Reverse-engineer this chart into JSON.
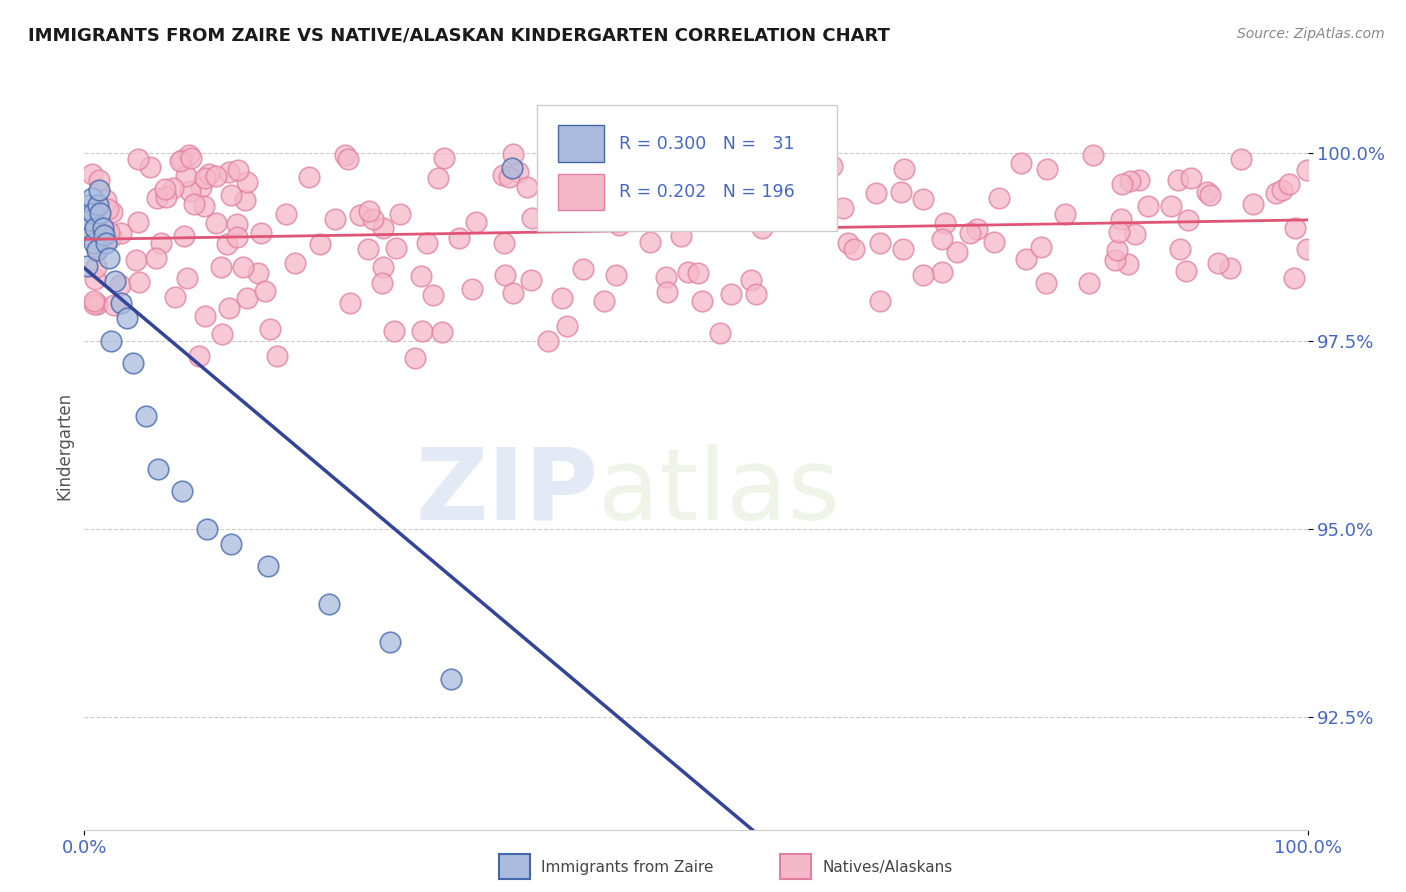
{
  "title": "IMMIGRANTS FROM ZAIRE VS NATIVE/ALASKAN KINDERGARTEN CORRELATION CHART",
  "source_text": "Source: ZipAtlas.com",
  "ylabel": "Kindergarten",
  "ytick_values": [
    92.5,
    95.0,
    97.5,
    100.0
  ],
  "legend_R_blue": "0.300",
  "legend_N_blue": "31",
  "legend_R_pink": "0.202",
  "legend_N_pink": "196",
  "label_blue": "Immigrants from Zaire",
  "label_pink": "Natives/Alaskans",
  "watermark_zip": "ZIP",
  "watermark_atlas": "atlas",
  "title_color": "#1a1a1a",
  "source_color": "#888888",
  "axis_tick_color": "#4466cc",
  "blue_dot_face": "#aabbdd",
  "blue_dot_edge": "#4466aa",
  "pink_dot_face": "#f5b8c8",
  "pink_dot_edge": "#e080a0",
  "blue_line_color": "#334499",
  "pink_line_color": "#e05575",
  "grid_color": "#cccccc",
  "legend_text_color": "#4466cc",
  "background_color": "#ffffff",
  "xlim": [
    0,
    100
  ],
  "ylim": [
    91.0,
    101.2
  ]
}
